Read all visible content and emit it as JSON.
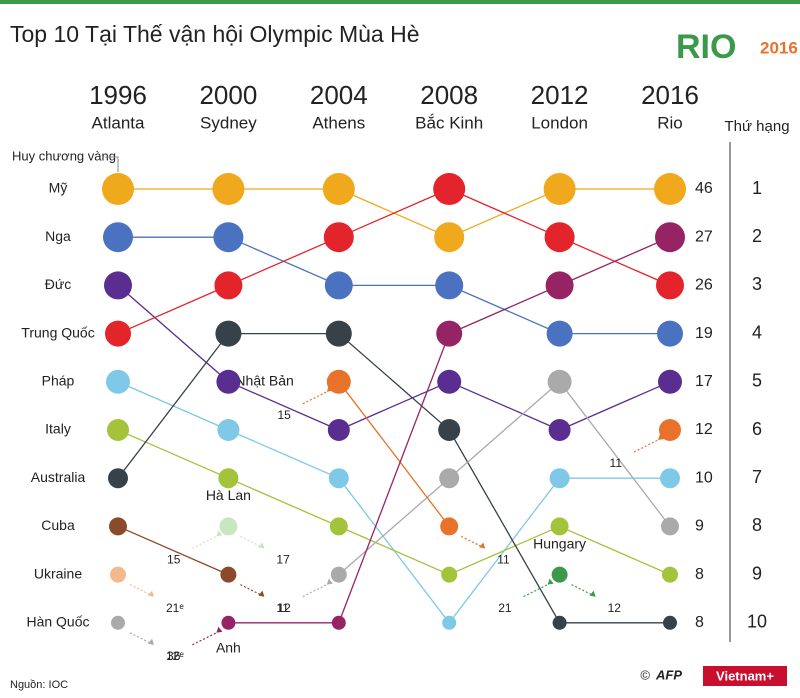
{
  "chart_data": {
    "type": "bump",
    "title": "Top 10 Tại Thế vận hội Olympic Mùa Hè",
    "logo_text": "RIO",
    "logo_year": "2016",
    "years": [
      1996,
      2000,
      2004,
      2008,
      2012,
      2016
    ],
    "cities": [
      "Atlanta",
      "Sydney",
      "Athens",
      "Bắc Kinh",
      "London",
      "Rio"
    ],
    "rank_axis_label": "Thứ hạng",
    "ranks": [
      1,
      2,
      3,
      4,
      5,
      6,
      7,
      8,
      9,
      10
    ],
    "gold_label": "Huy chương vàng",
    "series": [
      {
        "name": "Mỹ",
        "color": "#f0a81c",
        "ranks": [
          1,
          1,
          1,
          2,
          1,
          1
        ],
        "gold_2016": 46,
        "out_of_top": []
      },
      {
        "name": "Nga",
        "color": "#4a72c0",
        "ranks": [
          2,
          2,
          3,
          3,
          4,
          4
        ],
        "gold_2016": 19,
        "out_of_top": []
      },
      {
        "name": "Đức",
        "color": "#5a2d91",
        "ranks": [
          3,
          5,
          6,
          5,
          6,
          5
        ],
        "gold_2016": 17,
        "out_of_top": []
      },
      {
        "name": "Trung Quốc",
        "color": "#e3242b",
        "ranks": [
          4,
          3,
          2,
          1,
          2,
          3
        ],
        "gold_2016": 26,
        "out_of_top": []
      },
      {
        "name": "Pháp",
        "color": "#7fc8e8",
        "ranks": [
          5,
          6,
          7,
          10,
          7,
          7
        ],
        "gold_2016": 10,
        "out_of_top": []
      },
      {
        "name": "Italy",
        "color": "#a4c23a",
        "ranks": [
          6,
          7,
          8,
          9,
          8,
          9
        ],
        "gold_2016": 8,
        "out_of_top": []
      },
      {
        "name": "Australia",
        "color": "#374149",
        "ranks": [
          7,
          4,
          4,
          6,
          10,
          10
        ],
        "gold_2016": 8,
        "out_of_top": []
      },
      {
        "name": "Cuba",
        "color": "#8b4a2b",
        "ranks": [
          8,
          9,
          null,
          null,
          null,
          null
        ],
        "gold_2016": null,
        "out_of_top": [
          {
            "year": 2004,
            "rank": 11
          }
        ]
      },
      {
        "name": "Ukraine",
        "color": "#f3b98c",
        "ranks": [
          9,
          null,
          null,
          null,
          null,
          null
        ],
        "gold_2016": null,
        "out_of_top": [
          {
            "year": 2000,
            "rank": {
              "value": 21,
              "label": "21ᵉ"
            }
          }
        ]
      },
      {
        "name": "Hàn Quốc",
        "color": "#aaaaaa",
        "ranks": [
          10,
          null,
          9,
          7,
          5,
          8
        ],
        "gold_2016": 9,
        "out_of_top": [
          {
            "year": 2000,
            "rank": {
              "value": 12,
              "label": "12ᵉ"
            }
          },
          {
            "year": 2000,
            "rank": 12
          }
        ]
      },
      {
        "name": "Hà Lan",
        "color": "#c8e6c0",
        "ranks": [
          null,
          8,
          null,
          null,
          null,
          null
        ],
        "gold_2016": null,
        "out_of_top": [
          {
            "year": 1996,
            "rank": 15
          },
          {
            "year": 2004,
            "rank": 17
          }
        ]
      },
      {
        "name": "Nhật Bản",
        "color": "#e8722a",
        "ranks": [
          null,
          null,
          5,
          8,
          null,
          6
        ],
        "gold_2016": 12,
        "out_of_top": [
          {
            "year": 2000,
            "rank": 15
          },
          {
            "year": 2012,
            "rank": 11
          },
          {
            "year": 2012,
            "rank": 11
          }
        ]
      },
      {
        "name": "Anh",
        "color": "#962464",
        "ranks": [
          null,
          10,
          10,
          4,
          3,
          2
        ],
        "gold_2016": 27,
        "out_of_top": [
          {
            "year": 1996,
            "rank": 36
          }
        ]
      },
      {
        "name": "Hungary",
        "color": "#3a9a4a",
        "ranks": [
          null,
          null,
          null,
          null,
          9,
          null
        ],
        "gold_2016": null,
        "out_of_top": [
          {
            "year": 2008,
            "rank": 21
          },
          {
            "year": 2016,
            "rank": 12
          }
        ]
      }
    ],
    "source": "Nguồn: IOC",
    "credits": [
      "©",
      "AFP",
      "Vietnam+"
    ]
  }
}
